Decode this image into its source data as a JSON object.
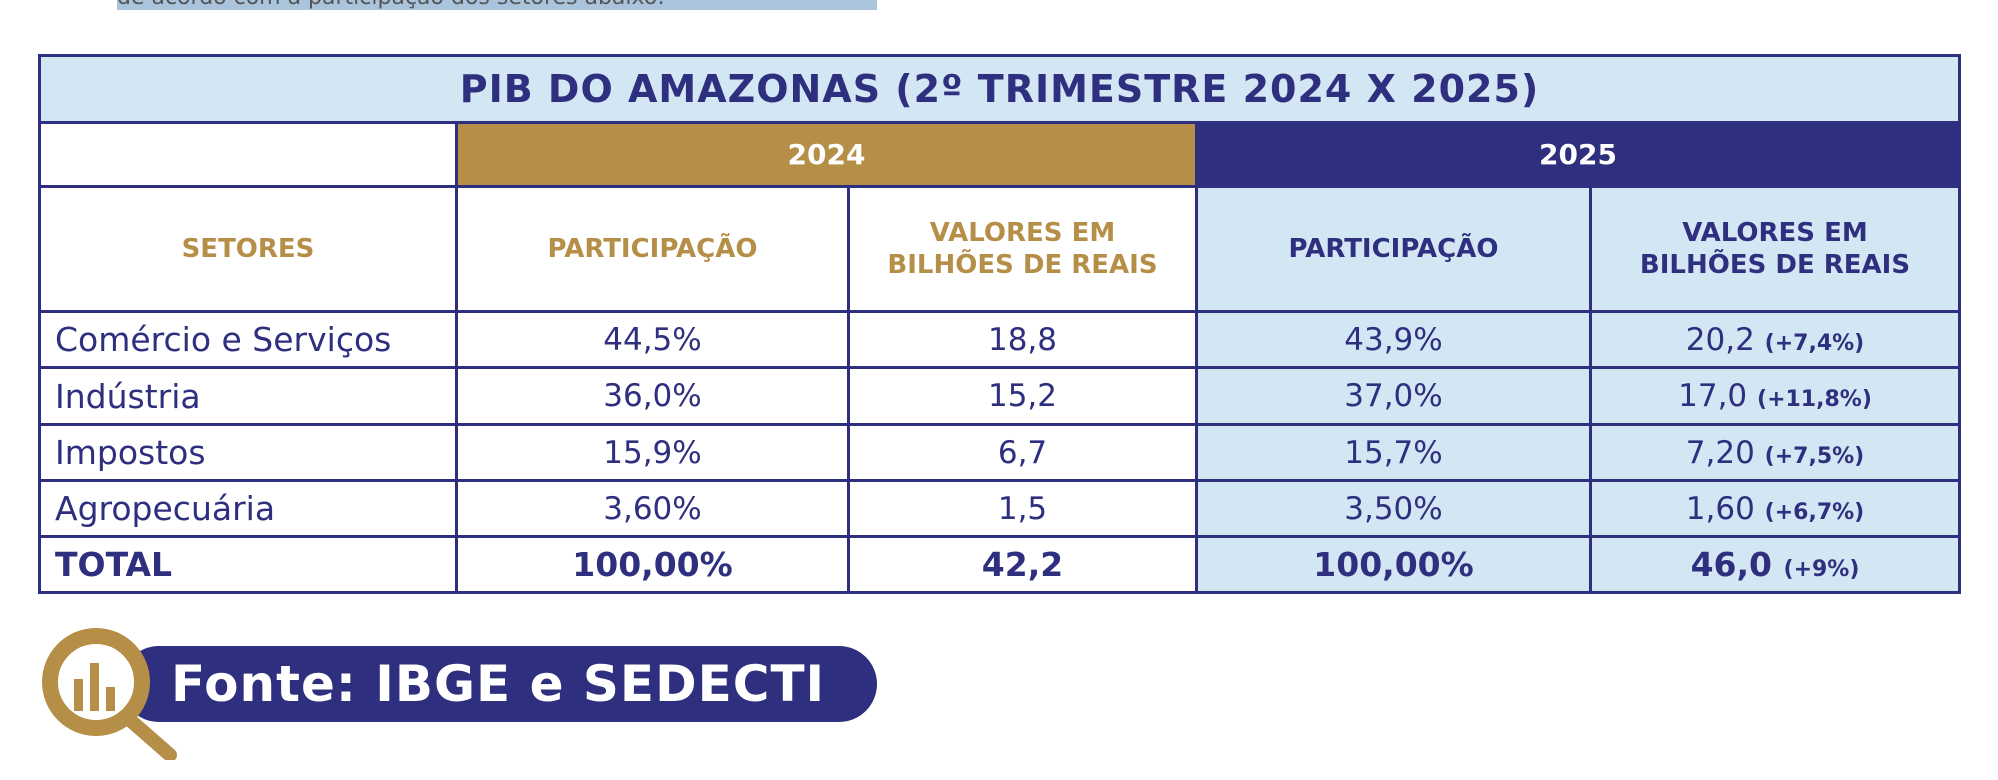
{
  "intro_text": "de acordo com a participação dos setores abaixo:",
  "table": {
    "title": "PIB DO AMAZONAS (2º TRIMESTRE 2024 X 2025)",
    "years": [
      "2024",
      "2025"
    ],
    "headers": [
      "SETORES",
      "PARTICIPAÇÃO",
      "VALORES EM BILHÕES DE REAIS",
      "PARTICIPAÇÃO",
      "VALORES EM BILHÕES DE REAIS"
    ],
    "rows": [
      {
        "sector": "Comércio e Serviços",
        "p2024": "44,5%",
        "v2024": "18,8",
        "p2025": "43,9%",
        "v2025": "20,2",
        "chg": "(+7,4%)"
      },
      {
        "sector": "Indústria",
        "p2024": "36,0%",
        "v2024": "15,2",
        "p2025": "37,0%",
        "v2025": "17,0",
        "chg": "(+11,8%)"
      },
      {
        "sector": "Impostos",
        "p2024": "15,9%",
        "v2024": "6,7",
        "p2025": "15,7%",
        "v2025": "7,20",
        "chg": "(+7,5%)"
      },
      {
        "sector": "Agropecuária",
        "p2024": "3,60%",
        "v2024": "1,5",
        "p2025": "3,50%",
        "v2025": "1,60",
        "chg": "(+6,7%)"
      }
    ],
    "total": {
      "sector": "TOTAL",
      "p2024": "100,00%",
      "v2024": "42,2",
      "p2025": "100,00%",
      "v2025": "46,0",
      "chg": "(+9%)"
    }
  },
  "source": "Fonte: IBGE e SEDECTI",
  "colors": {
    "navy": "#2e2f7f",
    "gold": "#b58f47",
    "light_blue": "#d3e6f3"
  }
}
